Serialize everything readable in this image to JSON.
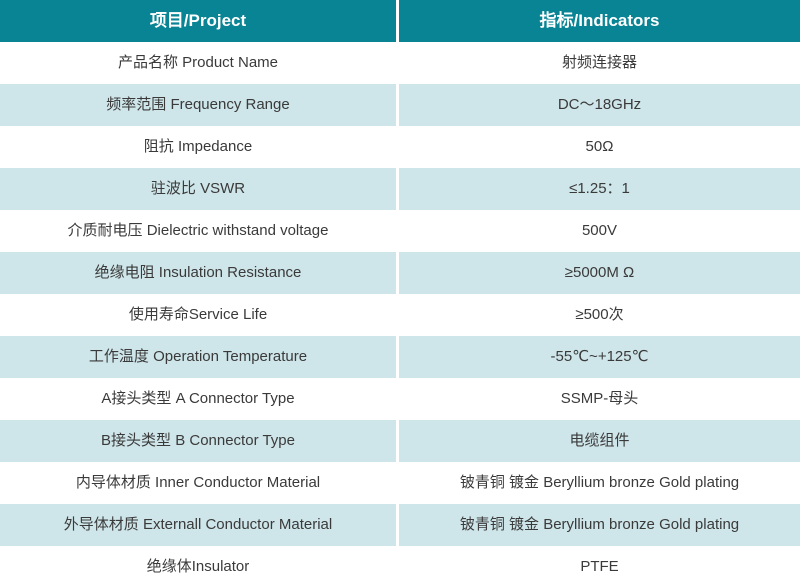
{
  "colors": {
    "header_bg": "#088494",
    "header_text": "#ffffff",
    "row_bg": "#ffffff",
    "row_alt_bg": "#cee5e9",
    "body_text": "#3a3a3a"
  },
  "table": {
    "header": {
      "project": "项目/Project",
      "indicators": "指标/Indicators"
    },
    "rows": [
      {
        "project": "产品名称 Product Name",
        "indicator": "射频连接器"
      },
      {
        "project": "频率范围 Frequency Range",
        "indicator": "DC～18GHz"
      },
      {
        "project": "阻抗 Impedance",
        "indicator": "50Ω"
      },
      {
        "project": "驻波比 VSWR",
        "indicator": "≤1.25：1"
      },
      {
        "project": "介质耐电压 Dielectric withstand voltage",
        "indicator": "500V"
      },
      {
        "project": "绝缘电阻 Insulation Resistance",
        "indicator": "≥5000M Ω"
      },
      {
        "project": "使用寿命Service Life",
        "indicator": "≥500次"
      },
      {
        "project": "工作温度 Operation Temperature",
        "indicator": "-55℃~+125℃"
      },
      {
        "project": "A接头类型 A Connector Type",
        "indicator": "SSMP-母头"
      },
      {
        "project": "B接头类型 B Connector Type",
        "indicator": "电缆组件"
      },
      {
        "project": "内导体材质 Inner Conductor Material",
        "indicator": "铍青铜 镀金 Beryllium bronze Gold plating"
      },
      {
        "project": "外导体材质 Externall Conductor Material",
        "indicator": "铍青铜 镀金 Beryllium bronze Gold plating"
      },
      {
        "project": "绝缘体Insulator",
        "indicator": "PTFE"
      }
    ]
  }
}
